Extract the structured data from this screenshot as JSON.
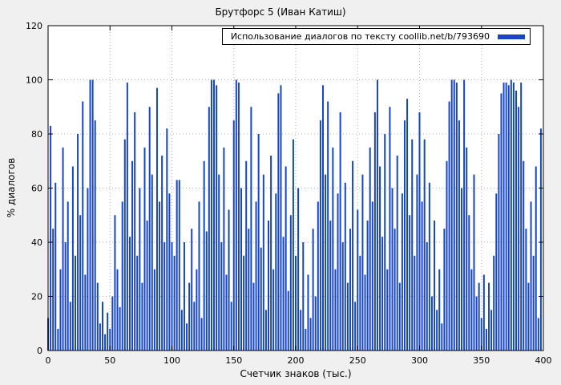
{
  "colors": {
    "bar": "#1646c4",
    "background": "#f0f0f0",
    "plot_bg": "#ffffff",
    "grid": "#b0b0b0",
    "axis": "#000000"
  },
  "chart_data": {
    "type": "bar",
    "title": "Брутфорс 5 (Иван Катиш)",
    "xlabel": "Счетчик знаков (тыс.)",
    "ylabel": "% диалогов",
    "xlim": [
      0,
      400
    ],
    "ylim": [
      0,
      120
    ],
    "x_ticks": [
      0,
      50,
      100,
      150,
      200,
      250,
      300,
      350,
      400
    ],
    "y_ticks": [
      0,
      20,
      40,
      60,
      80,
      100,
      120
    ],
    "grid": true,
    "legend_position": "top-right",
    "series": [
      {
        "name": "Использование диалогов по тексту coollib.net/b/793690",
        "x": [
          0,
          2,
          4,
          6,
          8,
          10,
          12,
          14,
          16,
          18,
          20,
          22,
          24,
          26,
          28,
          30,
          32,
          34,
          36,
          38,
          40,
          42,
          44,
          46,
          48,
          50,
          52,
          54,
          56,
          58,
          60,
          62,
          64,
          66,
          68,
          70,
          72,
          74,
          76,
          78,
          80,
          82,
          84,
          86,
          88,
          90,
          92,
          94,
          96,
          98,
          100,
          102,
          104,
          106,
          108,
          110,
          112,
          114,
          116,
          118,
          120,
          122,
          124,
          126,
          128,
          130,
          132,
          134,
          136,
          138,
          140,
          142,
          144,
          146,
          148,
          150,
          152,
          154,
          156,
          158,
          160,
          162,
          164,
          166,
          168,
          170,
          172,
          174,
          176,
          178,
          180,
          182,
          184,
          186,
          188,
          190,
          192,
          194,
          196,
          198,
          200,
          202,
          204,
          206,
          208,
          210,
          212,
          214,
          216,
          218,
          220,
          222,
          224,
          226,
          228,
          230,
          232,
          234,
          236,
          238,
          240,
          242,
          244,
          246,
          248,
          250,
          252,
          254,
          256,
          258,
          260,
          262,
          264,
          266,
          268,
          270,
          272,
          274,
          276,
          278,
          280,
          282,
          284,
          286,
          288,
          290,
          292,
          294,
          296,
          298,
          300,
          302,
          304,
          306,
          308,
          310,
          312,
          314,
          316,
          318,
          320,
          322,
          324,
          326,
          328,
          330,
          332,
          334,
          336,
          338,
          340,
          342,
          344,
          346,
          348,
          350,
          352,
          354,
          356,
          358,
          360,
          362,
          364,
          366,
          368,
          370,
          372,
          374,
          376,
          378,
          380,
          382,
          384,
          386,
          388,
          390,
          392,
          394,
          396,
          398
        ],
        "values": [
          12,
          83,
          45,
          62,
          8,
          30,
          75,
          40,
          55,
          18,
          68,
          35,
          80,
          50,
          92,
          28,
          60,
          100,
          100,
          85,
          25,
          10,
          18,
          6,
          14,
          8,
          20,
          50,
          30,
          16,
          55,
          78,
          99,
          42,
          70,
          88,
          35,
          60,
          25,
          75,
          48,
          90,
          65,
          30,
          97,
          55,
          72,
          40,
          82,
          58,
          40,
          35,
          63,
          63,
          15,
          40,
          10,
          25,
          45,
          18,
          30,
          55,
          12,
          70,
          44,
          90,
          100,
          100,
          98,
          65,
          40,
          75,
          28,
          52,
          18,
          85,
          100,
          99,
          60,
          35,
          70,
          45,
          90,
          25,
          55,
          80,
          38,
          65,
          15,
          48,
          72,
          30,
          58,
          95,
          98,
          42,
          68,
          22,
          50,
          78,
          35,
          60,
          15,
          40,
          8,
          28,
          12,
          45,
          20,
          55,
          85,
          98,
          65,
          92,
          48,
          75,
          30,
          58,
          88,
          40,
          62,
          25,
          45,
          70,
          18,
          52,
          35,
          65,
          28,
          48,
          75,
          55,
          88,
          100,
          68,
          42,
          80,
          30,
          90,
          60,
          45,
          72,
          25,
          58,
          85,
          93,
          50,
          78,
          35,
          65,
          88,
          55,
          78,
          40,
          62,
          20,
          48,
          15,
          30,
          10,
          45,
          70,
          92,
          100,
          100,
          99,
          85,
          60,
          100,
          75,
          50,
          30,
          65,
          20,
          25,
          12,
          28,
          8,
          25,
          15,
          35,
          58,
          80,
          95,
          99,
          99,
          98,
          100,
          99,
          96,
          90,
          99,
          70,
          45,
          25,
          55,
          35,
          68,
          12,
          82
        ]
      }
    ]
  }
}
